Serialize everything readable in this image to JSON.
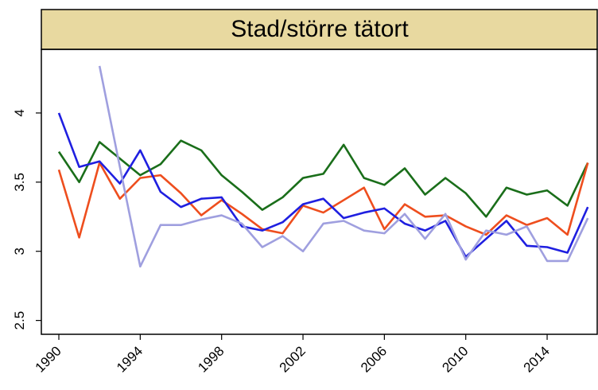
{
  "chart_data": {
    "type": "line",
    "title": "Stad/större tätort",
    "x": [
      1990,
      1991,
      1992,
      1993,
      1994,
      1995,
      1996,
      1997,
      1998,
      1999,
      2000,
      2001,
      2002,
      2003,
      2004,
      2005,
      2006,
      2007,
      2008,
      2009,
      2010,
      2011,
      2012,
      2013,
      2014,
      2015,
      2016
    ],
    "series": [
      {
        "color": "#1a6e1a",
        "values": [
          3.72,
          3.5,
          3.79,
          3.67,
          3.55,
          3.63,
          3.8,
          3.73,
          3.55,
          3.43,
          3.3,
          3.39,
          3.53,
          3.56,
          3.77,
          3.53,
          3.48,
          3.6,
          3.41,
          3.53,
          3.42,
          3.25,
          3.46,
          3.41,
          3.44,
          3.33,
          3.64
        ]
      },
      {
        "color": "#ee4e1e",
        "values": [
          3.59,
          3.1,
          3.64,
          3.38,
          3.53,
          3.55,
          3.42,
          3.26,
          3.37,
          3.27,
          3.16,
          3.13,
          3.33,
          3.28,
          3.37,
          3.46,
          3.16,
          3.34,
          3.25,
          3.26,
          3.18,
          3.12,
          3.26,
          3.19,
          3.24,
          3.12,
          3.64
        ]
      },
      {
        "color": "#1f1fe0",
        "values": [
          4.0,
          3.61,
          3.65,
          3.49,
          3.73,
          3.43,
          3.32,
          3.38,
          3.39,
          3.18,
          3.15,
          3.21,
          3.34,
          3.38,
          3.24,
          3.28,
          3.31,
          3.2,
          3.15,
          3.22,
          2.96,
          3.09,
          3.22,
          3.04,
          3.03,
          2.99,
          3.32
        ]
      },
      {
        "color": "#9f9fdf",
        "values": [
          null,
          null,
          4.34,
          3.61,
          2.89,
          3.19,
          3.19,
          3.23,
          3.26,
          3.2,
          3.03,
          3.11,
          3.0,
          3.2,
          3.22,
          3.15,
          3.13,
          3.27,
          3.09,
          3.27,
          2.94,
          3.15,
          3.12,
          3.18,
          2.93,
          2.93,
          3.24
        ]
      }
    ],
    "xlim": [
      1989.14,
      2016.5
    ],
    "xticks": [
      1990,
      1994,
      1998,
      2002,
      2006,
      2010,
      2014
    ],
    "ylim": [
      2.4,
      4.46
    ],
    "yticks": [
      2.5,
      3,
      3.5,
      4
    ],
    "strip_color": "#e8d9a0"
  }
}
